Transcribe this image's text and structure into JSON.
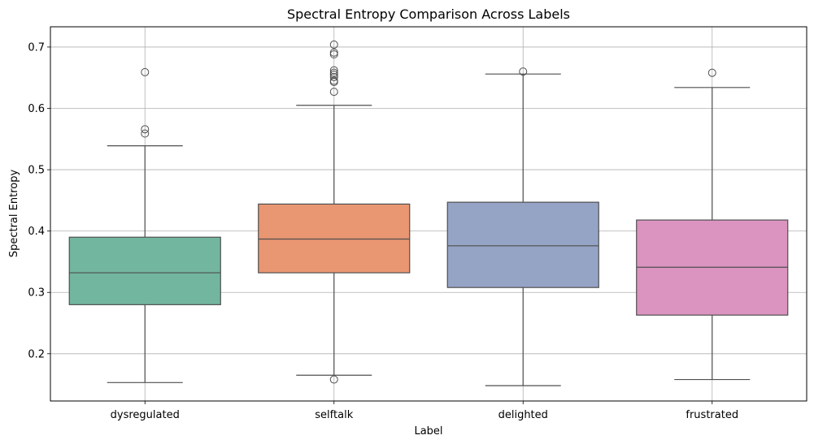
{
  "chart_data": {
    "type": "boxplot",
    "title": "Spectral Entropy Comparison Across Labels",
    "xlabel": "Label",
    "ylabel": "Spectral Entropy",
    "ylim": [
      0.123,
      0.733
    ],
    "yticks": [
      0.2,
      0.3,
      0.4,
      0.5,
      0.6,
      0.7
    ],
    "ytick_labels": [
      "0.2",
      "0.3",
      "0.4",
      "0.5",
      "0.6",
      "0.7"
    ],
    "grid": true,
    "categories": [
      "dysregulated",
      "selftalk",
      "delighted",
      "frustrated"
    ],
    "colors": [
      "#73b6a0",
      "#e99672",
      "#95a4c5",
      "#db94c0"
    ],
    "boxes": [
      {
        "label": "dysregulated",
        "whisker_low": 0.153,
        "q1": 0.28,
        "median": 0.332,
        "q3": 0.39,
        "whisker_high": 0.539,
        "outliers": [
          0.559,
          0.566,
          0.659
        ]
      },
      {
        "label": "selftalk",
        "whisker_low": 0.165,
        "q1": 0.332,
        "median": 0.387,
        "q3": 0.444,
        "whisker_high": 0.605,
        "outliers": [
          0.158,
          0.627,
          0.643,
          0.645,
          0.651,
          0.655,
          0.658,
          0.662,
          0.688,
          0.691,
          0.704
        ]
      },
      {
        "label": "delighted",
        "whisker_low": 0.148,
        "q1": 0.308,
        "median": 0.376,
        "q3": 0.447,
        "whisker_high": 0.656,
        "outliers": [
          0.66
        ]
      },
      {
        "label": "frustrated",
        "whisker_low": 0.158,
        "q1": 0.263,
        "median": 0.341,
        "q3": 0.418,
        "whisker_high": 0.634,
        "outliers": [
          0.658
        ]
      }
    ]
  }
}
